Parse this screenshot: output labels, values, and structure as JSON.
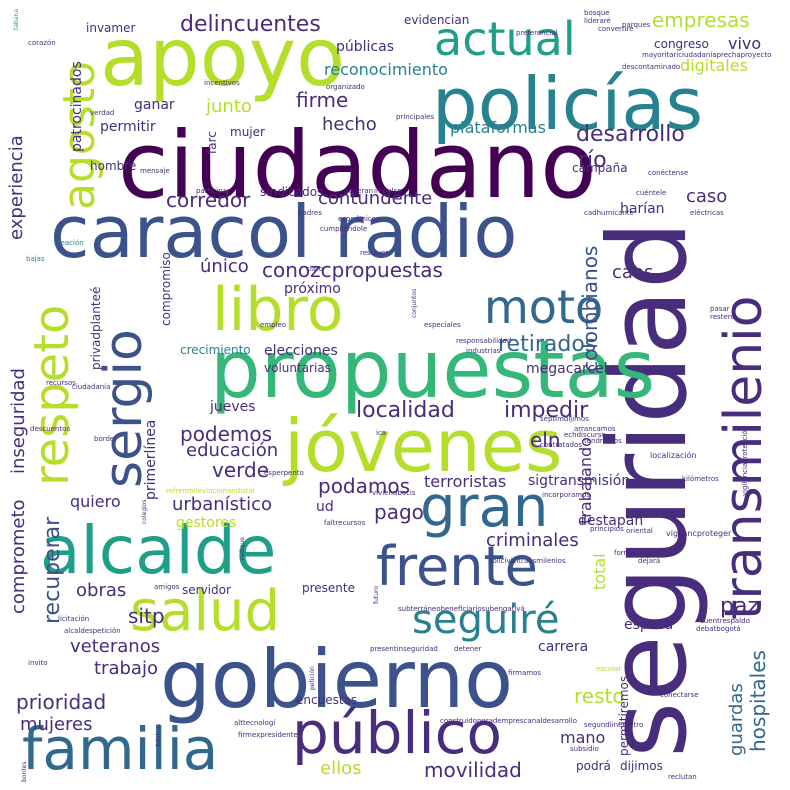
{
  "palette": {
    "purple": "#440154",
    "indigo": "#472d7b",
    "blue": "#3b528b",
    "slate": "#31688e",
    "teal": "#26828e",
    "green": "#1f9e89",
    "mint": "#35b779",
    "lime": "#6ece58",
    "yellowgreen": "#b5de2b",
    "yellow": "#fde725"
  },
  "words": {
    "seguridad": "seguridad",
    "ciudadano": "ciudadano",
    "caracol_radio": "caracol radio",
    "policias": "policías",
    "propuestas_big": "propuestas",
    "apoyo": "apoyo",
    "gobierno": "gobierno",
    "jovenes": "jóvenes",
    "alcalde": "alcalde",
    "salud": "salud",
    "libro": "libro",
    "transmilenio": "transmilenio",
    "publico": "público",
    "familia": "familia",
    "respeto": "respeto",
    "sergio": "sergio",
    "frente": "frente",
    "gran": "gran",
    "moto": "moto",
    "actual": "actual",
    "agosto": "agosto",
    "seguire": "seguiré",
    "delincuentes": "delincuentes",
    "empresas": "empresas",
    "conozcpropuestas": "conozcpropuestas",
    "corredor": "corredor",
    "contundente": "contundente",
    "firme": "firme",
    "hecho": "hecho",
    "desarrollo": "desarrollo",
    "localidad": "localidad",
    "impedir": "impedir",
    "retirados": "retirados",
    "colombianos": "colombianos",
    "recuperar": "recuperar",
    "podemos": "podemos",
    "educacion": "educación",
    "verde": "verde",
    "podamos": "podamos",
    "terroristas": "terroristas",
    "criminales": "criminales",
    "pago": "pago",
    "paz": "paz",
    "hospitales": "hospitales",
    "guardas": "guardas",
    "resto": "resto",
    "prioridad": "prioridad",
    "mujeres": "mujeres",
    "veteranos": "veteranos",
    "movilidad": "movilidad",
    "ellos": "ellos",
    "trabajo": "trabajo",
    "sitp": "sitp",
    "obras": "obras",
    "experiencia": "experiencia",
    "comprometo": "comprometo",
    "inseguridad": "inseguridad",
    "patrocinados": "patrocinados",
    "invamer": "invamer",
    "publicas": "públicas",
    "reconocimiento": "reconocimiento",
    "vivo": "vivo",
    "congreso": "congreso",
    "digitales": "digitales",
    "junto": "junto",
    "ganar": "ganar",
    "permitir": "permitir",
    "mujer": "mujer",
    "plataformas": "plataformas",
    "rio": "río",
    "caso": "caso",
    "harian": "harían",
    "unico": "único",
    "caos": "caos",
    "proximo": "próximo",
    "compromiso": "compromiso",
    "elecciones": "elecciones",
    "crecimiento": "crecimiento",
    "voluntarias": "voluntarias",
    "megacarcel": "megacarcel",
    "eln": "eln",
    "trabajando": "trabajando",
    "sigtransmision": "sigtransmisión",
    "destapan": "destapan",
    "total": "total",
    "urbanistico": "urbanístico",
    "quiero": "quiero",
    "gestores": "gestores",
    "ud": "ud",
    "jueves": "jueves",
    "primerlinea": "primerlínea",
    "privadplantee": "privadplanteé",
    "servidor": "servidor",
    "presente": "presente",
    "encuestas": "encuestas",
    "carrera": "carrera",
    "esposa": "esposa",
    "mano": "mano",
    "permitiremos": "permitiremos",
    "podra": "podrá",
    "dijimos": "dijimos",
    "hombre": "hombre",
    "farc": "farc",
    "sindicados": "sindicados",
    "campana": "campaña",
    "evidencian": "evidencian",
    "bosque": "bosque",
    "parques": "parques",
    "incentivos": "incentivos",
    "corazon": "corazón",
    "tabana": "tabana",
    "verdad": "verdad",
    "principales": "principales",
    "mensaje": "mensaje",
    "participar": "participar",
    "padres": "padres",
    "economicos": "económicos",
    "cumpliendole": "cumpliéndole",
    "creacion": "creación",
    "resolver": "resolver",
    "bajas": "bajas",
    "empleo": "empleo",
    "recursos": "recursos",
    "ciudadania": "ciudadanía",
    "descuentos": "descuentos",
    "borde": "borde",
    "esperpento": "esperpento",
    "tendremos": "tendremos",
    "kilometros": "kilómetros",
    "localizacion": "localización",
    "colegios": "colegios",
    "principios": "principios",
    "amigos": "amigos",
    "licitacion": "licitación",
    "alcaldespeticion": "alcaldespetición",
    "invito": "invito",
    "detener": "detener",
    "presentinseguridad": "presentinseguridad",
    "firmamos": "firmamos",
    "escolar": "escolar",
    "subsidio": "subsidio",
    "reclutan": "reclutan",
    "conectarse": "conectarse",
    "debatbogota": "debatbogotá",
    "cuentrespaldo": "cuentrespaldo",
    "segundlinemetro": "segundlinemetro",
    "alttecnologi": "alttecnologí",
    "firmexpresidente": "firmexpresidente",
    "construidoperademprescanaldesarrollo": "construidoperademprescanaldesarrollo",
    "vigilancproteger": "vigilancproteger",
    "formal": "formal",
    "dejara": "dejará",
    "oriental": "oriental",
    "conectense": "conéctense",
    "cuentele": "cuéntele",
    "electricas": "eléctricas",
    "mayoritariciudadaniaprechaproyecto": "mayoritariciudadaníaprechaproyecto",
    "descontaminado": "descontaminado",
    "convertire": "convertiré",
    "organizado": "organizado",
    "preferencial": "preferencial",
    "responsabilidad": "responsabilidad",
    "especiales": "especiales",
    "restero": "restero",
    "arrancamos": "arrancamos",
    "contratados": "contratados",
    "incorporamos": "incorporamos",
    "subterraneobeneficiariosubengativa": "subterráneobeneficiariosubengativá",
    "policivicitransmilenios": "policívicitransmilenios",
    "faltrecursos": "faltrecursos",
    "viviendbocis": "viviendbocis",
    "refrenmilevincionandistal": "refrenmilevincionandistal",
    "septimdijimos": "séptimdijimos",
    "echdiscurso": "echdiscurso",
    "vigilanciaproteccion": "vigilanciaprotección",
    "liderare": "lideraré",
    "mayoritariciudadania": "mayoritariciudadanía",
    "expresidente": "expresidente",
    "generan": "generan",
    "ica": "ica",
    "sigue": "sigue",
    "tecnologia": "tecnología",
    "conjuntos": "conjuntos",
    "descentral": "descentral",
    "radique": "radique",
    "futuro": "futuro",
    "petición": "petición",
    "basicos": "básicos",
    "bordes": "bordes",
    "desmovil": "desmovil",
    "pasar": "pasar",
    "industrias": "industrias",
    "claro": "claro",
    "peticion2": "petición",
    "megacarcel2": "megacárcel",
    "cadhumicante": "cadhumicante",
    "propuestas_small": "propuestas",
    "impulso": "impulso"
  }
}
